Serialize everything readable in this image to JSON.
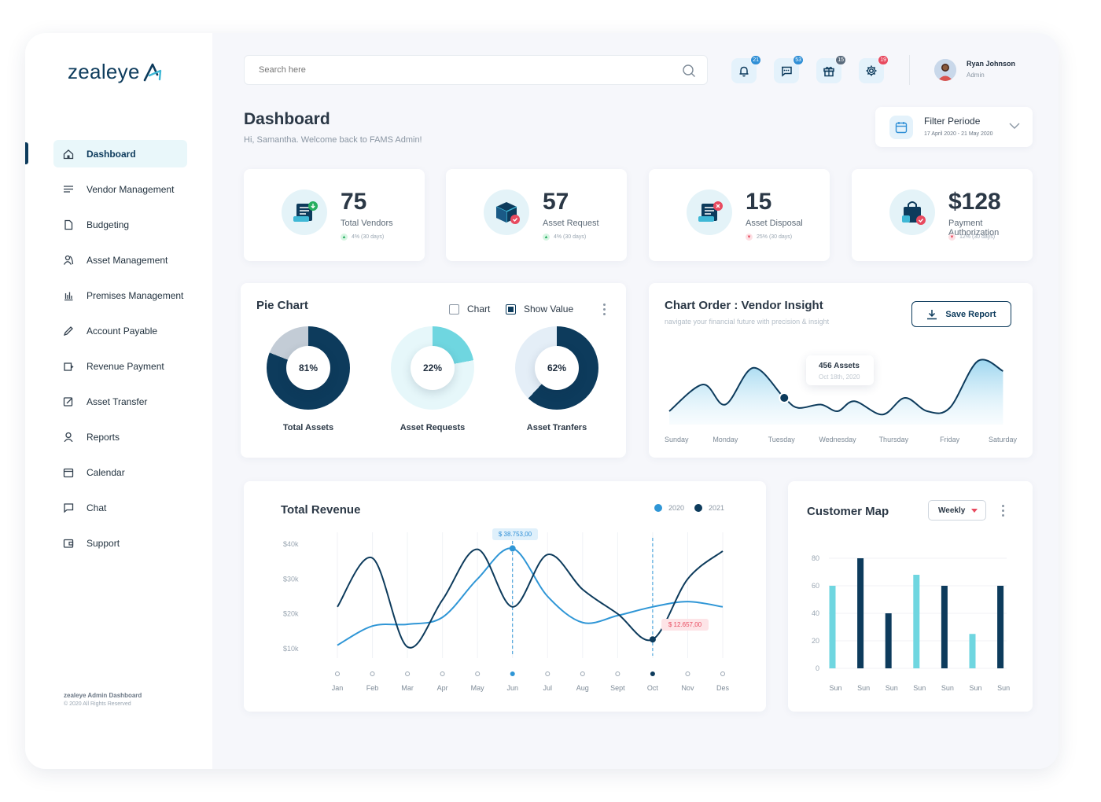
{
  "brand": {
    "name": "zealeye"
  },
  "sidebar": {
    "items": [
      {
        "label": "Dashboard",
        "icon": "home-icon",
        "active": true
      },
      {
        "label": "Vendor Management",
        "icon": "list-icon"
      },
      {
        "label": "Budgeting",
        "icon": "document-icon"
      },
      {
        "label": "Asset Management",
        "icon": "users-icon"
      },
      {
        "label": "Premises Management",
        "icon": "bar-chart-icon"
      },
      {
        "label": "Account Payable",
        "icon": "pencil-icon"
      },
      {
        "label": "Revenue Payment",
        "icon": "payment-icon"
      },
      {
        "label": "Asset Transfer",
        "icon": "edit-square-icon"
      },
      {
        "label": "Reports",
        "icon": "user-icon"
      },
      {
        "label": "Calendar",
        "icon": "calendar-icon"
      },
      {
        "label": "Chat",
        "icon": "chat-icon"
      },
      {
        "label": "Support",
        "icon": "wallet-icon"
      }
    ],
    "footer_title": "zealeye Admin Dashboard",
    "footer_copy": "© 2020 All Rights Reserved"
  },
  "header": {
    "search_placeholder": "Search here",
    "notifications": [
      {
        "icon": "bell-icon",
        "count": "21",
        "color": "#2f8fd6"
      },
      {
        "icon": "message-icon",
        "count": "53",
        "color": "#2f8fd6"
      },
      {
        "icon": "gift-icon",
        "count": "15",
        "color": "#5a6b7c"
      },
      {
        "icon": "gear-icon",
        "count": "19",
        "color": "#e84a5f"
      }
    ],
    "user_name": "Ryan Johnson",
    "user_role": "Admin"
  },
  "page": {
    "title": "Dashboard",
    "subtitle": "Hi, Samantha. Welcome back  to FAMS Admin!",
    "filter_title": "Filter Periode",
    "filter_range": "17 April 2020 - 21 May 2020"
  },
  "stats": [
    {
      "value": "75",
      "label": "Total Vendors",
      "trend": "4% (30 days)",
      "direction": "up",
      "icon": "vendors-icon"
    },
    {
      "value": "57",
      "label": "Asset Request",
      "trend": "4% (30 days)",
      "direction": "up",
      "icon": "box-icon"
    },
    {
      "value": "15",
      "label": "Asset Disposal",
      "trend": "25% (30 days)",
      "direction": "down",
      "icon": "disposal-icon"
    },
    {
      "value": "$128",
      "label": "Payment Authorization",
      "trend": "12% (30 days)",
      "direction": "down",
      "icon": "shopping-bag-icon"
    }
  ],
  "pie": {
    "title": "Pie Chart",
    "option_chart": "Chart",
    "option_show_value": "Show Value",
    "chart_checked": false,
    "show_value_checked": true,
    "items": [
      {
        "value": 81,
        "display": "81%",
        "label": "Total Assets",
        "color": "#0d3b5c",
        "rest": "#c3ccd6"
      },
      {
        "value": 22,
        "display": "22%",
        "label": "Asset Requests",
        "color": "#6fd6e0",
        "rest": "#e6f7fa"
      },
      {
        "value": 62,
        "display": "62%",
        "label": "Asset Tranfers",
        "color": "#0d3b5c",
        "rest": "#e4eef7"
      }
    ]
  },
  "order": {
    "title": "Chart Order : Vendor Insight",
    "subtitle": "navigate your financial future with precision & insight",
    "save_label": "Save Report",
    "tooltip_value": "456 Assets",
    "tooltip_date": "Oct 18th, 2020"
  },
  "revenue": {
    "title": "Total Revenue",
    "legend": [
      {
        "name": "2020",
        "color": "#2f96d6"
      },
      {
        "name": "2021",
        "color": "#0d3b5c"
      }
    ],
    "tooltip_high": "$ 38.753,00",
    "tooltip_low": "$ 12.657,00"
  },
  "customer": {
    "title": "Customer Map",
    "select": "Weekly"
  },
  "chart_data": [
    {
      "type": "pie",
      "title": "Pie Chart",
      "categories": [
        "Total Assets",
        "Asset Requests",
        "Asset Tranfers"
      ],
      "values": [
        81,
        22,
        62
      ]
    },
    {
      "type": "area",
      "title": "Chart Order : Vendor Insight",
      "categories": [
        "Sunday",
        "Monday",
        "Tuesday",
        "Wednesday",
        "Thursday",
        "Friday",
        "Saturday"
      ],
      "x": [
        0,
        0.6,
        1,
        1.5,
        2.05,
        2.3,
        2.7,
        3,
        3.3,
        3.8,
        4.2,
        4.6,
        5,
        5.5,
        5.95
      ],
      "y": [
        20,
        60,
        30,
        85,
        40,
        25,
        30,
        20,
        35,
        15,
        40,
        20,
        25,
        95,
        80
      ],
      "ylim": [
        0,
        100
      ],
      "highlight_x": 2.05,
      "highlight_label": "456 Assets"
    },
    {
      "type": "line",
      "title": "Total Revenue",
      "categories": [
        "Jan",
        "Feb",
        "Mar",
        "Apr",
        "May",
        "Jun",
        "Jul",
        "Aug",
        "Sept",
        "Oct",
        "Nov",
        "Des"
      ],
      "yticks": [
        "$10k",
        "$20k",
        "$30k",
        "$40k"
      ],
      "ylim": [
        5000,
        45000
      ],
      "series": [
        {
          "name": "2020",
          "values": [
            11000,
            16500,
            17000,
            19000,
            30000,
            38753,
            25000,
            17500,
            19500,
            22000,
            23500,
            22000
          ]
        },
        {
          "name": "2021",
          "values": [
            22000,
            36000,
            10500,
            24000,
            38500,
            22000,
            37000,
            27000,
            20000,
            12657,
            30000,
            38000
          ]
        }
      ]
    },
    {
      "type": "bar",
      "title": "Customer Map",
      "categories": [
        "Sun",
        "Sun",
        "Sun",
        "Sun",
        "Sun",
        "Sun",
        "Sun"
      ],
      "yticks": [
        0,
        20,
        40,
        60,
        80
      ],
      "ylim": [
        0,
        80
      ],
      "series": [
        {
          "values": [
            60,
            0,
            0,
            68,
            0,
            25,
            0
          ]
        },
        {
          "values": [
            0,
            80,
            40,
            0,
            60,
            0,
            60
          ]
        }
      ]
    }
  ]
}
